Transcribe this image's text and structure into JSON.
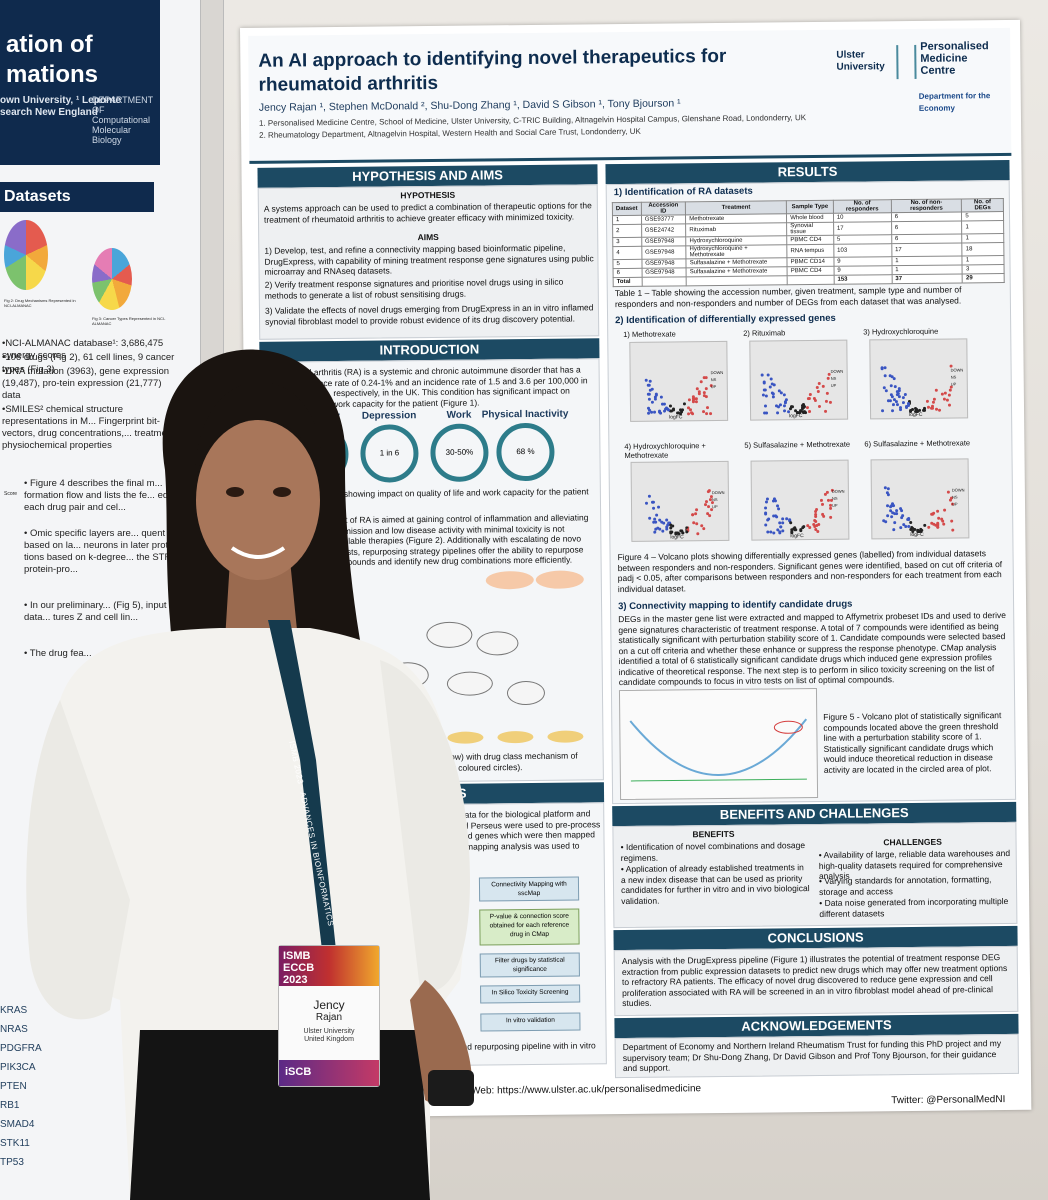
{
  "left_poster": {
    "title_line1": "ation of",
    "title_line2": "mations",
    "subtitle": "own University, ¹ Leponte\nsearch New England",
    "logo_text": "DEPARTMENT OF\nComputational\nMolecular Biology",
    "datasets_heading": "Datasets",
    "fig_caption_a": "Fig 2: Drug Mechanisms Represented in NCI-ALMANAC",
    "fig_caption_b": "Fig 3: Cancer Types Represented in NCI-ALMANAC",
    "bullets": [
      "•NCI-ALMANAC database¹: 3,686,475 synergy scores",
      "•106 drugs (Fig 2), 61 cell lines, 9 cancer types (Fig 3)",
      "•DNA mutation (3963), gene expression (19,487), pro-tein expression (21,777) data",
      "•SMILES² chemical structure representations in M... Fingerprint bit-vectors, drug concentrations,... treatment, physiochemical properties"
    ],
    "mid_text_1": "• Figure 4 describes the final m... formation flow and lists the fe... ed for each drug pair and cel...",
    "mid_text_2": "• Omic specific layers are... quent layers based on la... neurons in later protein... tions based on k-degree... the STRING protein-pro...",
    "mid_text_3": "• In our preliminary... (Fig 5), input data... tures Z and cell lin...",
    "mid_text_4": "• The drug fea...",
    "score_label": "Score",
    "gene_list": [
      "KRAS",
      "NRAS",
      "PDGFRA",
      "PIK3CA",
      "PTEN",
      "RB1",
      "SMAD4",
      "STK11",
      "TP53"
    ]
  },
  "poster": {
    "title": "An AI approach to identifying novel therapeutics for rheumatoid arthritis",
    "authors": "Jency Rajan ¹, Stephen McDonald ², Shu-Dong Zhang ¹, David S Gibson ¹, Tony Bjourson ¹",
    "affiliation_1": "1.  Personalised Medicine Centre, School of Medicine, Ulster University, C-TRIC Building, Altnagelvin Hospital Campus, Glenshane Road, Londonderry, UK",
    "affiliation_2": "2.  Rheumatology Department, Altnagelvin Hospital, Western Health and Social Care Trust, Londonderry, UK",
    "logos": {
      "ulster": "Ulster\nUniversity",
      "pmc": "Personalised\nMedicine\nCentre",
      "economy": "Department for the\nEconomy"
    },
    "hypothesis": {
      "heading": "HYPOTHESIS AND AIMS",
      "sub": "HYPOTHESIS",
      "text": "A systems approach can be used to predict a combination of therapeutic options for the treatment of rheumatoid arthritis to achieve greater efficacy with minimized toxicity.",
      "aims_sub": "AIMS",
      "aim1": "1) Develop, test, and refine a connectivity mapping based bioinformatic pipeline, DrugExpress, with capability of mining treatment response gene signatures using public microarray and RNAseq datasets.",
      "aim2": "2) Verify treatment response signatures and prioritise novel drugs using in silico methods to generate a list of robust sensitising drugs.",
      "aim3": "3) Validate the effects of novel drugs emerging from DrugExpress in an in vitro inflamed synovial fibroblast model to provide robust evidence of its drug discovery potential."
    },
    "introduction": {
      "heading": "INTRODUCTION",
      "text": "Rheumatoid arthritis (RA) is a systemic and chronic autoimmune disorder that has a global prevalence rate of 0.24-1% and an incidence rate of 1.5 and 3.6 per 100,000 in men and women, respectively, in the UK. This condition has significant impact on quality of life and work capacity for the patient (Figure 1).",
      "stats": [
        {
          "label": "Mortality",
          "value": "↑6 %"
        },
        {
          "label": "Depression",
          "value": "1 in 6"
        },
        {
          "label": "Work",
          "value": "30-50%"
        },
        {
          "label": "Physical Inactivity",
          "value": "68 %"
        }
      ],
      "fig1_caption": "Figure 1 – Statistics showing impact on quality of life and work capacity for the patient after diagnosis.",
      "text2": "Current management of RA is aimed at gaining control of inflammation and alleviating pain through drug remission and low disease activity with minimal toxicity is not possible with the available therapies (Figure 2). Additionally with escalating de novo drug development costs, repurposing strategy pipelines offer the ability to repurpose already licenced compounds and identify new drug combinations more efficiently.",
      "fig2_caption": "Figure 2 – Current rheumatoid arthritis (bottom row) with drug class mechanism of action in terms of known molecular targets (upper coloured circles)."
    },
    "methods": {
      "heading": "METHODS",
      "text": "Treatment studies were mined based on available data for the biological platform and interrogated using the R/Bioconductor packages and Perseus were used to pre-process datasets and to obtain a list of differentially expressed genes which were then mapped to Affymetrix probeset IDs to derive the connectivity mapping analysis was used to obtain a list of ranked therapeutic response.",
      "flow": [
        "Connectivity Mapping with sscMap",
        "P-value & connection score obtained for each reference drug in CMap",
        "Filter drugs by statistical significance",
        "In Silico Toxicity Screening",
        "In vitro validation"
      ],
      "fig_caption": "...and repurposing pipeline with in vitro"
    },
    "results": {
      "heading": "RESULTS",
      "sec1": "1)  Identification of RA datasets",
      "table": {
        "headers": [
          "Dataset",
          "Accession ID",
          "Treatment",
          "Sample Type",
          "No. of responders",
          "No. of non-responders",
          "No. of DEGs"
        ],
        "rows": [
          [
            "1",
            "GSE93777",
            "Methotrexate",
            "Whole blood",
            "10",
            "6",
            "5"
          ],
          [
            "2",
            "GSE24742",
            "Rituximab",
            "Synovial tissue",
            "17",
            "6",
            "1"
          ],
          [
            "3",
            "GSE97948",
            "Hydroxychloroquine",
            "PBMC CD4",
            "5",
            "6",
            "1"
          ],
          [
            "4",
            "GSE97948",
            "Hydroxychloroquine + Methotrexate",
            "RNA tempus",
            "103",
            "17",
            "18"
          ],
          [
            "5",
            "GSE97948",
            "Sulfasalazine + Methotrexate",
            "PBMC CD14",
            "9",
            "1",
            "1"
          ],
          [
            "6",
            "GSE97948",
            "Sulfasalazine + Methotrexate",
            "PBMC CD4",
            "9",
            "1",
            "3"
          ]
        ],
        "total": [
          "Total",
          "",
          "",
          "",
          "153",
          "37",
          "29"
        ]
      },
      "table_caption": "Table 1 – Table showing the accession number, given treatment, sample type and number of responders and non-responders and number of DEGs from each dataset that was analysed.",
      "sec2": "2) Identification of differentially expressed genes",
      "volcano_titles": [
        "1) Methotrexate",
        "2) Rituximab",
        "3) Hydroxychloroquine",
        "4) Hydroxychloroquine + Methotrexate",
        "5) Sulfasalazine + Methotrexate",
        "6) Sulfasalazine + Methotrexate"
      ],
      "volcano_legend": [
        "DOWN",
        "NS",
        "UP"
      ],
      "volcano_xlabel": "logFC",
      "fig4_caption": "Figure 4 – Volcano plots showing differentially expressed genes (labelled) from individual datasets between responders and non-responders. Significant genes were identified, based on cut off criteria of padj < 0.05, after comparisons between responders and non-responders for each treatment from each individual dataset.",
      "sec3": "3) Connectivity mapping to identify candidate drugs",
      "sec3_text": "DEGs in the master gene list were extracted and mapped to Affymetrix probeset IDs and used to derive gene signatures characteristic of treatment response. A total of 7 compounds were identified as being statistically significant with perturbation stability score of 1. Candidate compounds were selected based on a cut off criteria and whether these enhance or suppress the response phenotype. CMap analysis identified a total of 6 statistically significant candidate drugs which induced gene expression profiles indicative of theoretical response. The next step is to perform in silico toxicity screening on the list of candidate compounds to focus in vitro tests on list of optimal compounds.",
      "fig5_caption": "Figure 5 - Volcano plot of statistically significant compounds located above the green threshold line with a perturbation stability score of 1. Statistically significant candidate drugs which would induce theoretical reduction in disease activity are located in the circled area of plot."
    },
    "benefits": {
      "heading": "BENEFITS AND CHALLENGES",
      "benefits_sub": "BENEFITS",
      "benefits": [
        "• Identification of novel combinations and dosage regimens.",
        "• Application of already established treatments in a new index disease that can be used as priority candidates for further in vitro and in vivo biological validation."
      ],
      "challenges_sub": "CHALLENGES",
      "challenges": [
        "• Availability of large, reliable data warehouses and high-quality datasets required for comprehensive analysis",
        "• Varying standards for annotation, formatting, storage and access",
        "• Data noise generated from incorporating multiple different datasets"
      ]
    },
    "conclusions": {
      "heading": "CONCLUSIONS",
      "text": "Analysis with the DrugExpress pipeline (Figure 1) illustrates the potential of treatment response DEG extraction from public expression datasets to predict new drugs which may offer new treatment options to refractory RA patients. The efficacy of novel drug discovered to reduce gene expression and cell proliferation associated with RA will be screened in an in vitro fibroblast model ahead of pre-clinical studies."
    },
    "acknowledgements": {
      "heading": "ACKNOWLEDGEMENTS",
      "text": "Department of Economy and Northern Ireland Rheumatism Trust for funding this PhD project and my supervisory team; Dr Shu-Dong Zhang, Dr David Gibson and Prof Tony Bjourson, for their guidance and support."
    },
    "web": "Web: https://www.ulster.ac.uk/personalisedmedicine",
    "twitter": "Twitter: @PersonalMedNI"
  },
  "badge": {
    "event": "ISMB\nECCB\n2023",
    "name_first": "Jency",
    "name_last": "Rajan",
    "affiliation": "Ulster University\nUnited Kingdom",
    "org": "iSCB"
  },
  "lanyard": "ISMB 2023 · ADVANCES IN BIOINFORMATICS"
}
